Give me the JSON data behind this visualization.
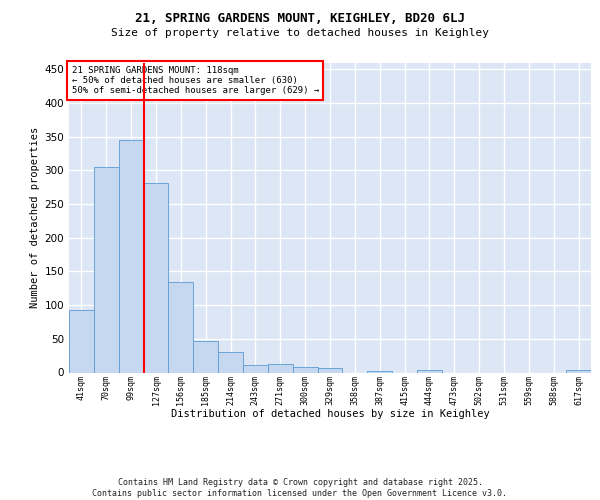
{
  "title1": "21, SPRING GARDENS MOUNT, KEIGHLEY, BD20 6LJ",
  "title2": "Size of property relative to detached houses in Keighley",
  "xlabel": "Distribution of detached houses by size in Keighley",
  "ylabel": "Number of detached properties",
  "categories": [
    "41sqm",
    "70sqm",
    "99sqm",
    "127sqm",
    "156sqm",
    "185sqm",
    "214sqm",
    "243sqm",
    "271sqm",
    "300sqm",
    "329sqm",
    "358sqm",
    "387sqm",
    "415sqm",
    "444sqm",
    "473sqm",
    "502sqm",
    "531sqm",
    "559sqm",
    "588sqm",
    "617sqm"
  ],
  "values": [
    93,
    305,
    345,
    281,
    135,
    47,
    31,
    11,
    12,
    8,
    6,
    0,
    2,
    0,
    3,
    0,
    0,
    0,
    0,
    0,
    3
  ],
  "bar_color": "#c5d8f0",
  "bar_edge_color": "#5b9bd5",
  "vline_x": 2.5,
  "vline_color": "red",
  "annotation_text": "21 SPRING GARDENS MOUNT: 118sqm\n← 50% of detached houses are smaller (630)\n50% of semi-detached houses are larger (629) →",
  "annotation_box_color": "white",
  "annotation_box_edge_color": "red",
  "ylim": [
    0,
    460
  ],
  "yticks": [
    0,
    50,
    100,
    150,
    200,
    250,
    300,
    350,
    400,
    450
  ],
  "background_color": "#dce6f5",
  "grid_color": "white",
  "footer": "Contains HM Land Registry data © Crown copyright and database right 2025.\nContains public sector information licensed under the Open Government Licence v3.0."
}
